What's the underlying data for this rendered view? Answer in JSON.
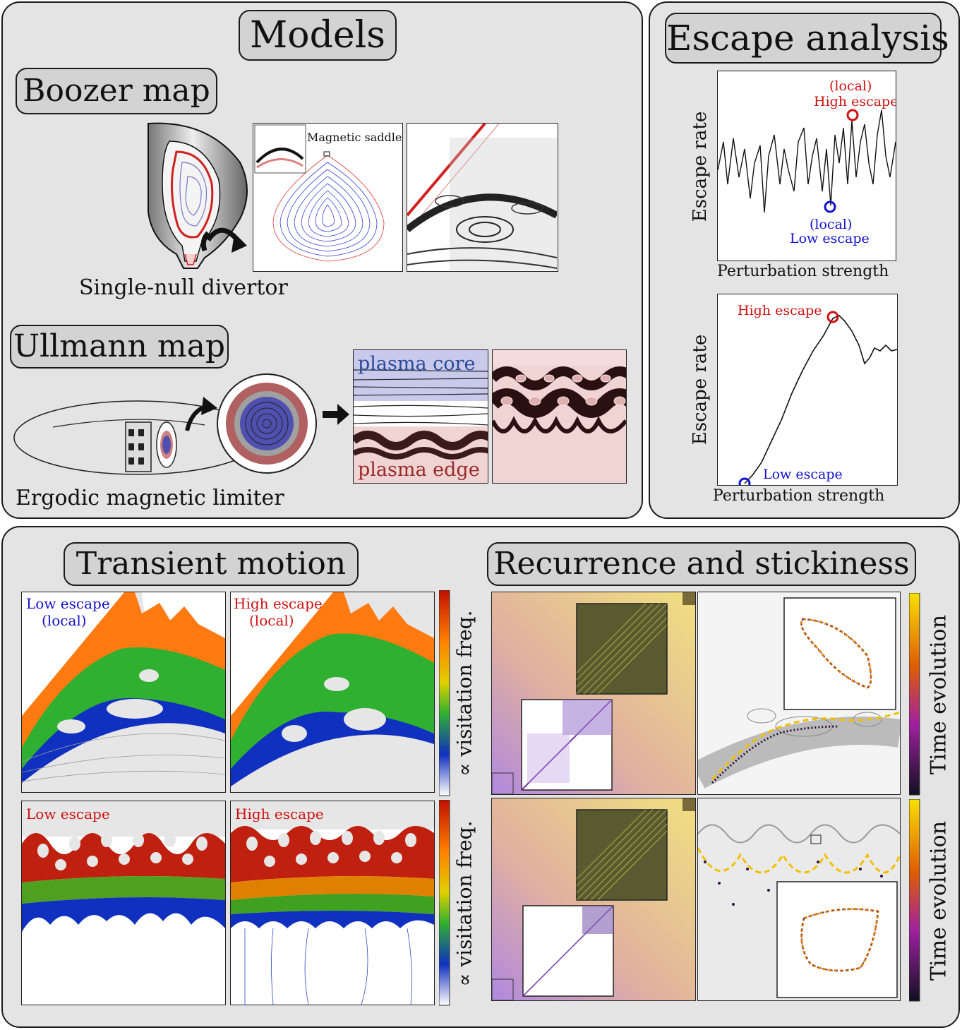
{
  "titles": {
    "models": "Models",
    "boozer": "Boozer map",
    "ullmann": "Ullmann map",
    "escape": "Escape analysis",
    "transient": "Transient motion",
    "recurrence": "Recurrence and stickiness"
  },
  "models": {
    "boozer_caption": "Single-null divertor",
    "saddle_label": "Magnetic saddle",
    "ullmann_caption": "Ergodic magnetic limiter",
    "core_label": "plasma core",
    "edge_label": "plasma edge"
  },
  "escape": {
    "plot1": {
      "ylabel": "Escape rate",
      "xlabel": "Perturbation strength",
      "high_label_1": "(local)",
      "high_label_2": "High escape",
      "low_label_1": "(local)",
      "low_label_2": "Low escape"
    },
    "plot2": {
      "ylabel": "Escape rate",
      "xlabel": "Perturbation strength",
      "high_label": "High escape",
      "low_label": "Low escape"
    }
  },
  "transient": {
    "tl_label_1": "Low escape",
    "tl_label_2": "(local)",
    "tr_label_1": "High escape",
    "tr_label_2": "(local)",
    "bl_label": "Low escape",
    "br_label": "High escape",
    "colorbar_label": "∝ visitation freq."
  },
  "recurrence": {
    "colorbar_label": "Time evolution"
  },
  "colors": {
    "panel_bg": "#e4e4e4",
    "title_bg": "#d3d3d3",
    "red": "#d01010",
    "blue": "#1010d0"
  }
}
